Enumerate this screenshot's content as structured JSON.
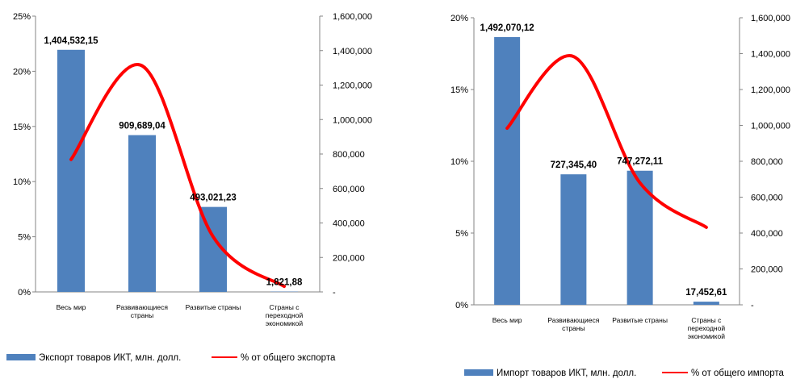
{
  "chart_data": [
    {
      "type": "bar",
      "categories": [
        [
          "Весь мир"
        ],
        [
          "Развивающиеся",
          "страны"
        ],
        [
          "Развитые страны"
        ],
        [
          "Страны с",
          "переходной",
          "экономикой"
        ]
      ],
      "series": [
        {
          "name": "Экспорт товаров ИКТ, млн. долл.",
          "type": "bar",
          "axis": "right",
          "color": "#4f81bd",
          "values": [
            1404532.15,
            909689.04,
            493021.23,
            1821.88
          ],
          "labels": [
            "1,404,532,15",
            "909,689,04",
            "493,021,23",
            "1,821,88"
          ]
        },
        {
          "name": "% от общего экспорта",
          "type": "line",
          "axis": "left",
          "color": "#ff0000",
          "smooth": true,
          "values": [
            12,
            20.5,
            5,
            0.5
          ]
        }
      ],
      "y_left": {
        "min": 0,
        "max": 25,
        "ticks": [
          0,
          5,
          10,
          15,
          20,
          25
        ],
        "labels": [
          "0%",
          "5%",
          "10%",
          "15%",
          "20%",
          "25%"
        ]
      },
      "y_right": {
        "min": 0,
        "max": 1600000,
        "ticks": [
          0,
          200000,
          400000,
          600000,
          800000,
          1000000,
          1200000,
          1400000,
          1600000
        ],
        "labels": [
          "-",
          "200,000",
          "400,000",
          "600,000",
          "800,000",
          "1,000,000",
          "1,200,000",
          "1,400,000",
          "1,600,000"
        ]
      },
      "legend_position": "bottom"
    },
    {
      "type": "bar",
      "categories": [
        [
          "Весь мир"
        ],
        [
          "Развивающиеся",
          "страны"
        ],
        [
          "Развитые страны"
        ],
        [
          "Страны с",
          "переходной",
          "экономикой"
        ]
      ],
      "series": [
        {
          "name": "Импорт товаров ИКТ, млн. долл.",
          "type": "bar",
          "axis": "right",
          "color": "#4f81bd",
          "values": [
            1492070.12,
            727345.4,
            747272.11,
            17452.61
          ],
          "labels": [
            "1,492,070,12",
            "727,345,40",
            "747,272,11",
            "17,452,61"
          ]
        },
        {
          "name": "% от общего импорта",
          "type": "line",
          "axis": "left",
          "color": "#ff0000",
          "smooth": true,
          "values": [
            12.3,
            17.3,
            8.5,
            5.4
          ]
        }
      ],
      "y_left": {
        "min": 0,
        "max": 20,
        "ticks": [
          0,
          5,
          10,
          15,
          20
        ],
        "labels": [
          "0%",
          "5%",
          "10%",
          "15%",
          "20%"
        ]
      },
      "y_right": {
        "min": 0,
        "max": 1600000,
        "ticks": [
          0,
          200000,
          400000,
          600000,
          800000,
          1000000,
          1200000,
          1400000,
          1600000
        ],
        "labels": [
          "-",
          "200,000",
          "400,000",
          "600,000",
          "800,000",
          "1,000,000",
          "1,200,000",
          "1,400,000",
          "1,600,000"
        ]
      },
      "legend_position": "bottom"
    }
  ]
}
